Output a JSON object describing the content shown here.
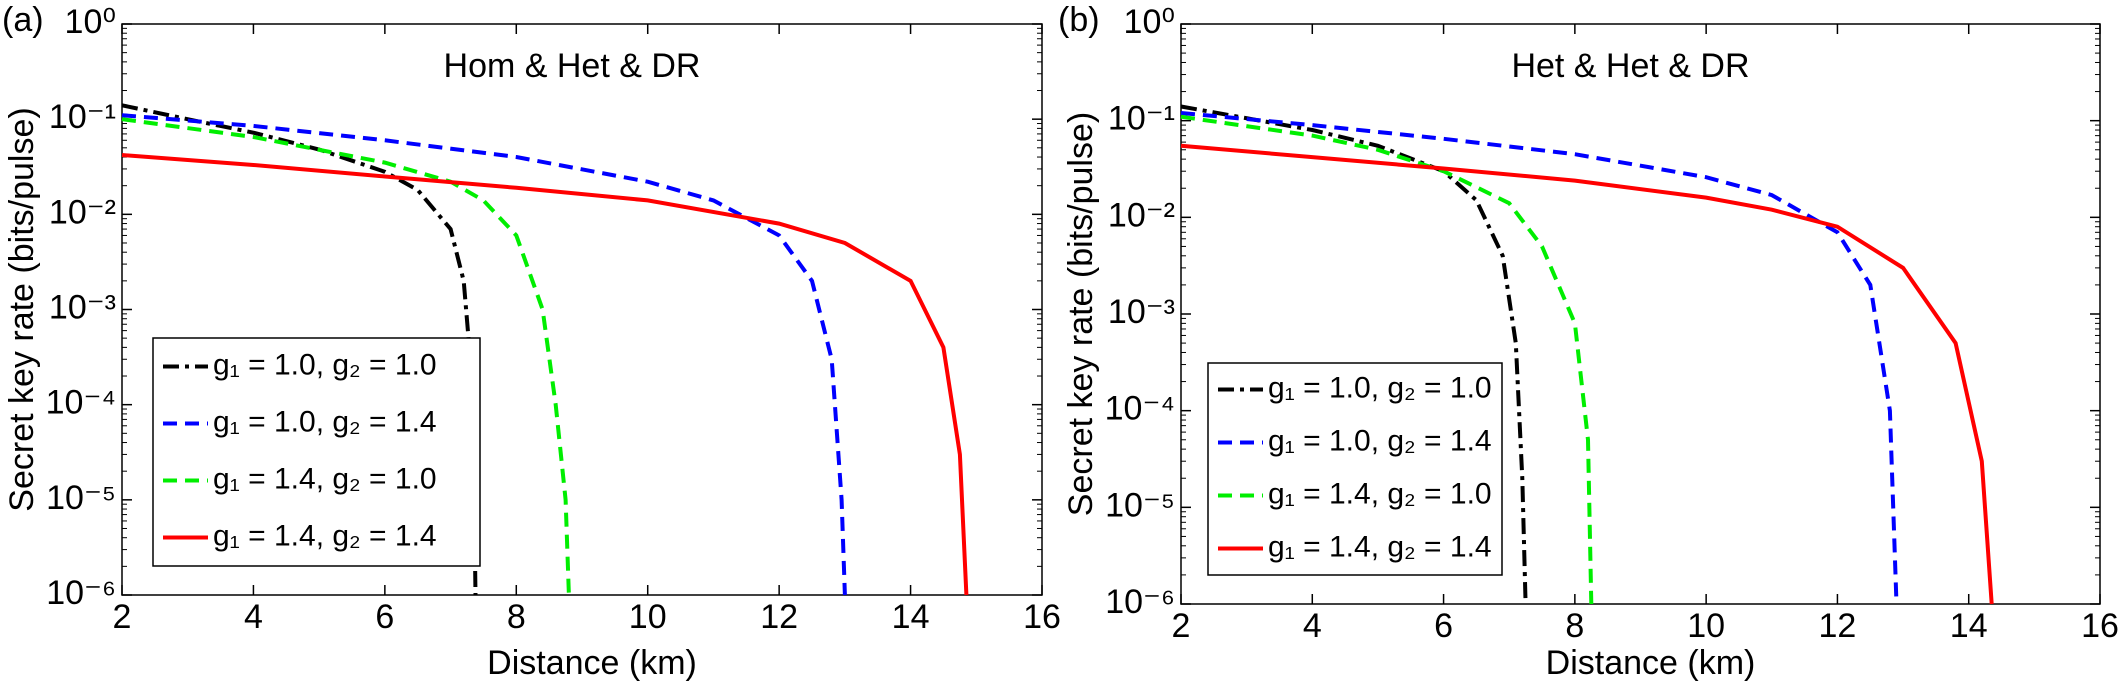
{
  "chart_data": [
    {
      "type": "line",
      "panel_label": "(a)",
      "title": "Hom & Het & DR",
      "xlabel": "Distance (km)",
      "ylabel": "Secret key rate (bits/pulse)",
      "log_y": true,
      "xlim": [
        2,
        16
      ],
      "xticks": [
        2,
        4,
        6,
        8,
        10,
        12,
        14,
        16
      ],
      "ylim": [
        1e-06,
        1
      ],
      "yticks": [
        {
          "value": 1e-06,
          "label": "10⁻⁶"
        },
        {
          "value": 1e-05,
          "label": "10⁻⁵"
        },
        {
          "value": 0.0001,
          "label": "10⁻⁴"
        },
        {
          "value": 0.001,
          "label": "10⁻³"
        },
        {
          "value": 0.01,
          "label": "10⁻²"
        },
        {
          "value": 0.1,
          "label": "10⁻¹"
        },
        {
          "value": 1,
          "label": "10⁰"
        }
      ],
      "legend": "lower left",
      "series": [
        {
          "name": "g₁ = 1.0, g₂ = 1.0",
          "color": "#000000",
          "dash": "dashdot",
          "x": [
            2,
            3,
            4,
            5,
            6,
            6.5,
            7,
            7.2,
            7.3,
            7.35,
            7.38
          ],
          "values": [
            0.14,
            0.1,
            0.072,
            0.048,
            0.028,
            0.018,
            0.007,
            0.002,
            0.0003,
            3e-05,
            1e-06
          ]
        },
        {
          "name": "g₁ = 1.0, g₂ = 1.4",
          "color": "#0000ff",
          "dash": "dashed",
          "x": [
            2,
            4,
            6,
            8,
            10,
            11,
            12,
            12.5,
            12.8,
            12.95,
            13
          ],
          "values": [
            0.11,
            0.085,
            0.06,
            0.04,
            0.022,
            0.014,
            0.006,
            0.002,
            0.0003,
            1e-05,
            1e-06
          ]
        },
        {
          "name": "g₁ = 1.4, g₂ = 1.0",
          "color": "#00ee00",
          "dash": "dashed",
          "x": [
            2,
            4,
            6,
            7,
            7.5,
            8,
            8.4,
            8.6,
            8.75,
            8.8
          ],
          "values": [
            0.1,
            0.065,
            0.035,
            0.022,
            0.014,
            0.006,
            0.001,
            0.0001,
            1e-05,
            1e-06
          ]
        },
        {
          "name": "g₁ = 1.4, g₂ = 1.4",
          "color": "#ff0000",
          "dash": "solid",
          "x": [
            2,
            4,
            6,
            8,
            10,
            12,
            13,
            14,
            14.5,
            14.75,
            14.85
          ],
          "values": [
            0.042,
            0.033,
            0.025,
            0.019,
            0.014,
            0.008,
            0.005,
            0.002,
            0.0004,
            3e-05,
            1e-06
          ]
        }
      ]
    },
    {
      "type": "line",
      "panel_label": "(b)",
      "title": "Het & Het & DR",
      "xlabel": "Distance (km)",
      "ylabel": "Secret key rate (bits/pulse)",
      "log_y": true,
      "xlim": [
        2,
        16
      ],
      "xticks": [
        2,
        4,
        6,
        8,
        10,
        12,
        14,
        16
      ],
      "ylim": [
        1e-06,
        1
      ],
      "yticks": [
        {
          "value": 1e-06,
          "label": "10⁻⁶"
        },
        {
          "value": 1e-05,
          "label": "10⁻⁵"
        },
        {
          "value": 0.0001,
          "label": "10⁻⁴"
        },
        {
          "value": 0.001,
          "label": "10⁻³"
        },
        {
          "value": 0.01,
          "label": "10⁻²"
        },
        {
          "value": 0.1,
          "label": "10⁻¹"
        },
        {
          "value": 1,
          "label": "10⁰"
        }
      ],
      "legend": "lower left",
      "series": [
        {
          "name": "g₁ = 1.0, g₂ = 1.0",
          "color": "#000000",
          "dash": "dashdot",
          "x": [
            2,
            4,
            5,
            6,
            6.5,
            6.9,
            7.1,
            7.2,
            7.25
          ],
          "values": [
            0.14,
            0.08,
            0.055,
            0.03,
            0.015,
            0.004,
            0.0005,
            2e-05,
            1e-06
          ]
        },
        {
          "name": "g₁ = 1.0, g₂ = 1.4",
          "color": "#0000ff",
          "dash": "dashed",
          "x": [
            2,
            4,
            6,
            8,
            10,
            11,
            12,
            12.5,
            12.8,
            12.9
          ],
          "values": [
            0.12,
            0.09,
            0.065,
            0.045,
            0.026,
            0.017,
            0.007,
            0.002,
            0.0001,
            1e-06
          ]
        },
        {
          "name": "g₁ = 1.4, g₂ = 1.0",
          "color": "#00ee00",
          "dash": "dashed",
          "x": [
            2,
            4,
            5,
            6,
            7,
            7.5,
            8,
            8.2,
            8.25
          ],
          "values": [
            0.11,
            0.07,
            0.05,
            0.03,
            0.014,
            0.005,
            0.0008,
            5e-05,
            1e-06
          ]
        },
        {
          "name": "g₁ = 1.4, g₂ = 1.4",
          "color": "#ff0000",
          "dash": "solid",
          "x": [
            2,
            4,
            6,
            8,
            10,
            11,
            12,
            13,
            13.8,
            14.2,
            14.35
          ],
          "values": [
            0.055,
            0.042,
            0.032,
            0.024,
            0.016,
            0.012,
            0.008,
            0.003,
            0.0005,
            3e-05,
            1e-06
          ]
        }
      ]
    }
  ]
}
